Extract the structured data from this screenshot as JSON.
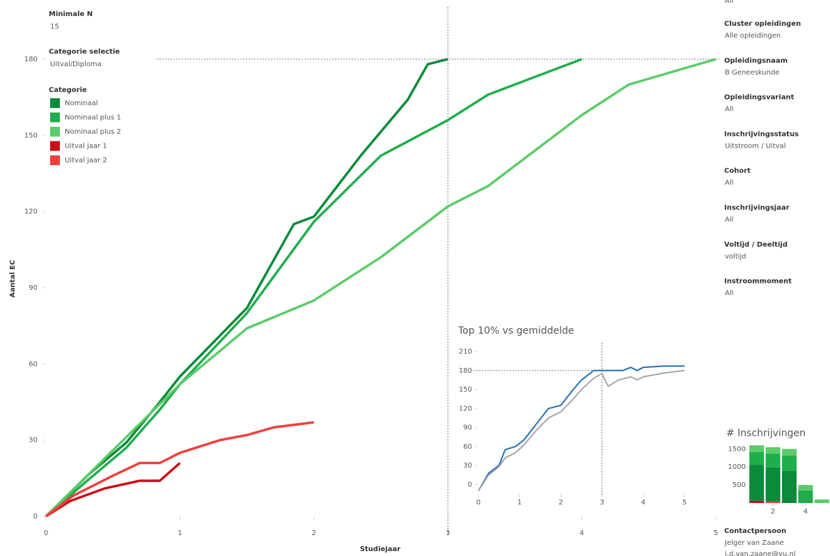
{
  "chart_data": [
    {
      "type": "line",
      "xlabel": "Studiejaar",
      "ylabel": "Aantal EC",
      "xlim": [
        0,
        5
      ],
      "ylim": [
        0,
        200
      ],
      "xticks": [
        0,
        1,
        2,
        3,
        4,
        5
      ],
      "yticks": [
        0,
        30,
        60,
        90,
        120,
        150,
        180
      ],
      "crosshair": {
        "x": 3,
        "y": 180
      },
      "legend_title": "Categorie",
      "series": [
        {
          "name": "Nominaal",
          "color": "#0b8a3a",
          "x": [
            0,
            0.33,
            0.6,
            0.85,
            1,
            1.5,
            1.85,
            2,
            2.35,
            2.7,
            2.85,
            3
          ],
          "values": [
            0,
            17,
            29,
            45,
            55,
            82,
            115,
            118,
            142,
            164,
            178,
            180
          ]
        },
        {
          "name": "Nominaal plus 1",
          "color": "#1fae4b",
          "x": [
            0,
            0.33,
            0.6,
            0.85,
            1,
            1.5,
            2,
            2.5,
            3,
            3.3,
            3.65,
            4
          ],
          "values": [
            0,
            15,
            27,
            42,
            52,
            80,
            116,
            142,
            156,
            166,
            173,
            180
          ]
        },
        {
          "name": "Nominaal plus 2",
          "color": "#5ccb6a",
          "x": [
            0,
            1,
            1.5,
            2,
            2.5,
            3,
            3.3,
            4,
            4.35,
            5
          ],
          "values": [
            0,
            52,
            74,
            85,
            102,
            122,
            130,
            158,
            170,
            180
          ]
        },
        {
          "name": "Uitval jaar 1",
          "color": "#c8101a",
          "x": [
            0,
            0.18,
            0.44,
            0.7,
            0.85,
            1
          ],
          "values": [
            0,
            6,
            11,
            14,
            14,
            21
          ]
        },
        {
          "name": "Uitval jaar 2",
          "color": "#f0403c",
          "x": [
            0,
            0.2,
            0.5,
            0.7,
            0.85,
            1,
            1.3,
            1.5,
            1.7,
            2
          ],
          "values": [
            0,
            8,
            16,
            21,
            21,
            25,
            30,
            32,
            35,
            37
          ]
        }
      ]
    },
    {
      "type": "line",
      "title": "Top 10% vs gemiddelde",
      "xlim": [
        0,
        5
      ],
      "ylim": [
        -15,
        215
      ],
      "xticks": [
        0,
        1,
        2,
        3,
        4,
        5
      ],
      "yticks": [
        0,
        30,
        60,
        90,
        120,
        150,
        180,
        210
      ],
      "crosshair": {
        "x": 3,
        "y": 180
      },
      "series": [
        {
          "color": "#1f6fb2",
          "x": [
            0,
            0.25,
            0.5,
            0.65,
            0.9,
            1.1,
            1.4,
            1.7,
            2,
            2.3,
            2.5,
            2.8,
            3,
            3.5,
            3.7,
            3.85,
            4,
            4.5,
            5
          ],
          "values": [
            -10,
            18,
            30,
            55,
            60,
            70,
            95,
            120,
            125,
            150,
            165,
            180,
            180,
            180,
            185,
            180,
            185,
            187,
            187
          ]
        },
        {
          "color": "#a9a3ad",
          "x": [
            0,
            0.25,
            0.5,
            0.65,
            0.9,
            1.1,
            1.4,
            1.7,
            2,
            2.3,
            2.5,
            2.8,
            3,
            3.15,
            3.4,
            3.7,
            3.85,
            4,
            4.5,
            5
          ],
          "values": [
            -10,
            15,
            28,
            42,
            50,
            62,
            85,
            105,
            115,
            135,
            150,
            168,
            175,
            155,
            165,
            170,
            165,
            170,
            176,
            180
          ]
        }
      ]
    },
    {
      "type": "bar",
      "title": "# Inschrijvingen",
      "stacked": true,
      "x": [
        1,
        2,
        3,
        4,
        5
      ],
      "xlim": [
        0.5,
        5.5
      ],
      "ylim": [
        0,
        1700
      ],
      "xticks": [
        2,
        4
      ],
      "yticks": [
        500,
        1000,
        1500
      ],
      "series": [
        {
          "color": "#c8101a",
          "values": [
            60,
            0,
            0,
            0,
            0
          ]
        },
        {
          "color": "#f0403c",
          "values": [
            0,
            40,
            0,
            0,
            0
          ]
        },
        {
          "color": "#0b8a3a",
          "values": [
            1000,
            950,
            900,
            0,
            0
          ]
        },
        {
          "color": "#1fae4b",
          "values": [
            350,
            380,
            420,
            350,
            0
          ]
        },
        {
          "color": "#5ccb6a",
          "values": [
            190,
            180,
            180,
            150,
            100
          ]
        }
      ]
    }
  ],
  "left_filters": [
    {
      "label": "Minimale N",
      "value": "15"
    },
    {
      "label": "Categorie selectie",
      "value": "Uitval/Diploma"
    }
  ],
  "right_filters": [
    {
      "value": "All"
    },
    {
      "label": "Cluster opleidingen",
      "value": "Alle opleidingen"
    },
    {
      "label": "Opleidingsnaam",
      "value": "B Geneeskunde"
    },
    {
      "label": "Opleidingsvariant",
      "value": "All"
    },
    {
      "label": "Inschrijvingsstatus",
      "value": "Uitstroom / Uitval"
    },
    {
      "label": "Cohort",
      "value": "All"
    },
    {
      "label": "Inschrijvingsjaar",
      "value": "All"
    },
    {
      "label": "Voltijd / Deeltijd",
      "value": "voltijd"
    },
    {
      "label": "Instroommoment",
      "value": "All"
    }
  ],
  "contact": {
    "label": "Contactpersoon",
    "name": "Jelger van Zaane",
    "email": "j.d.van.zaane@vu.nl"
  }
}
